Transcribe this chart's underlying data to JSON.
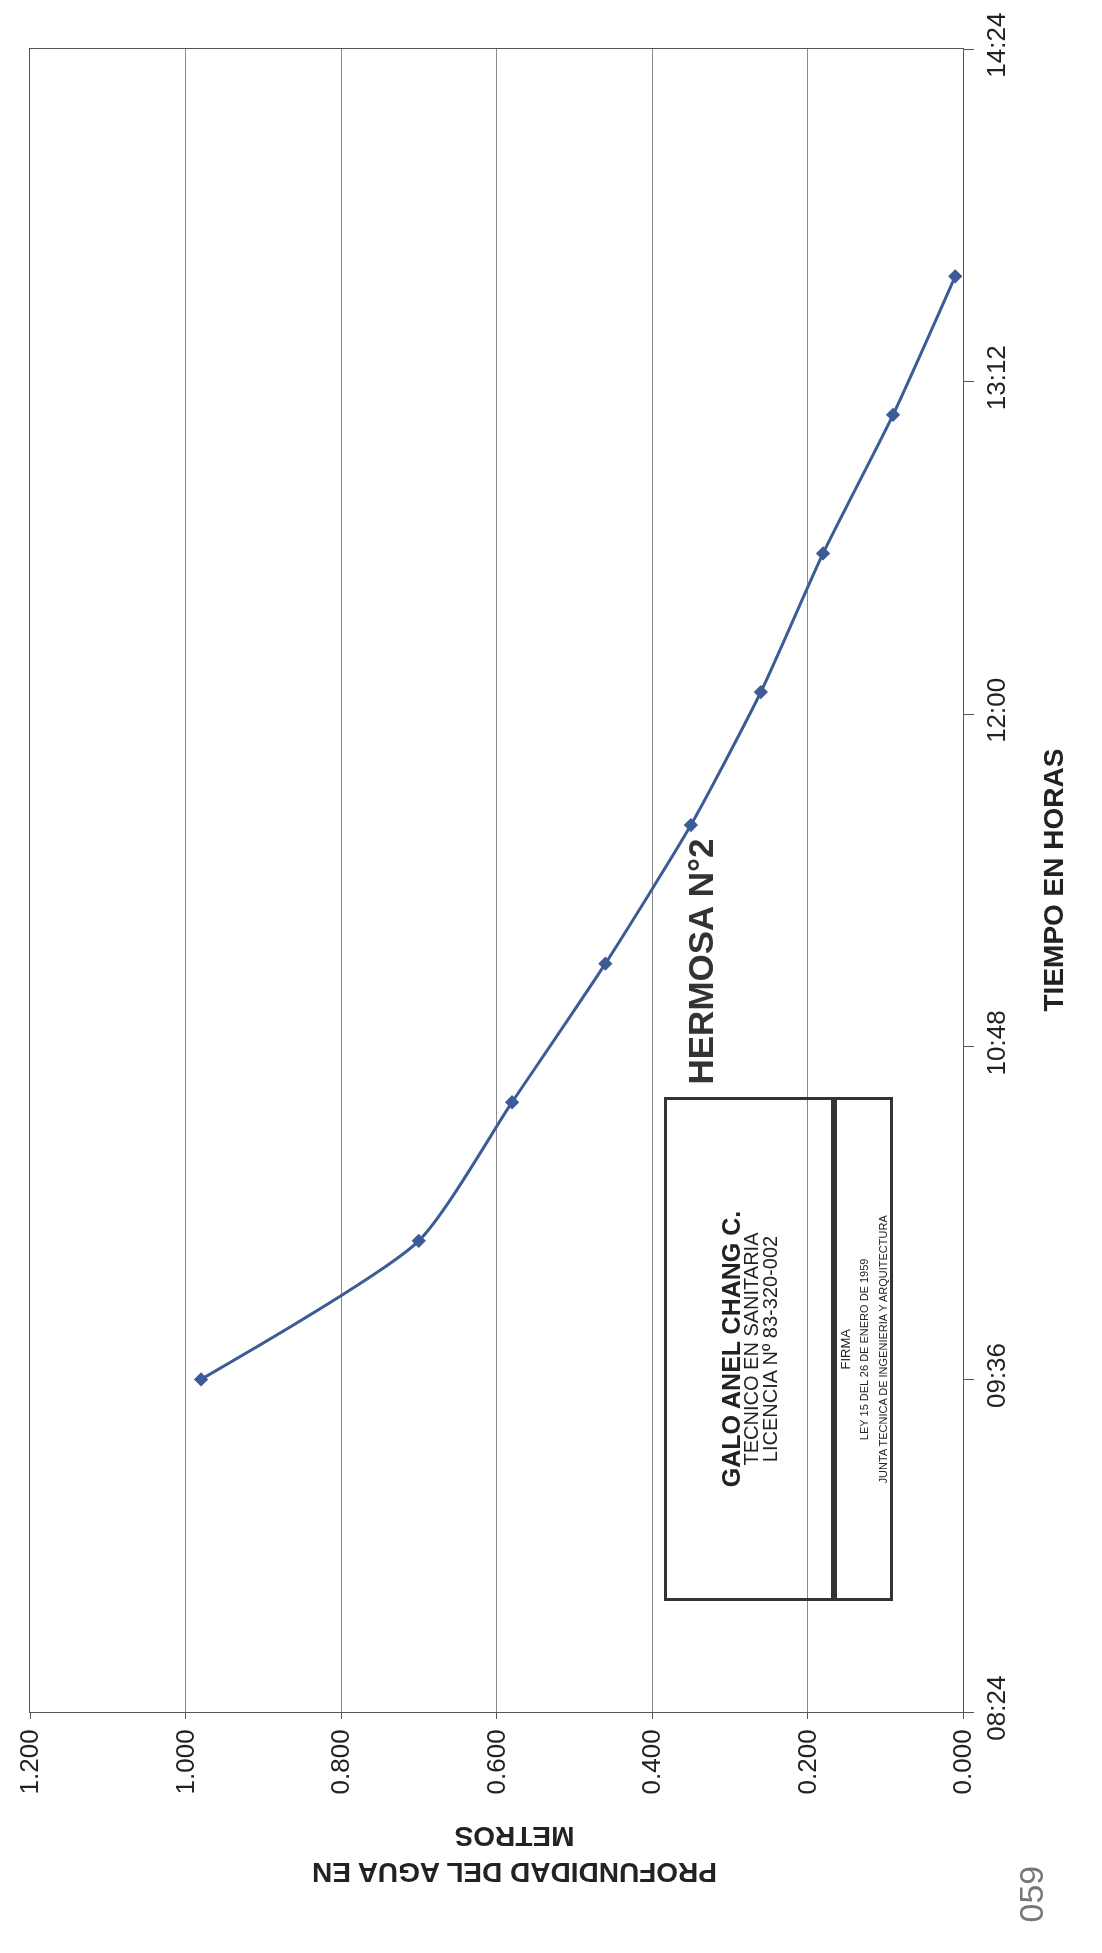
{
  "chart_data": {
    "type": "line",
    "title": "HERMOSA N°2",
    "xlabel": "PROFUNDIDAD DEL AGUA EN METROS",
    "ylabel": "TIEMPO EN HORAS",
    "x": [
      0.98,
      0.7,
      0.58,
      0.46,
      0.35,
      0.26,
      0.18,
      0.09,
      0.01
    ],
    "series": [
      {
        "color": "#3b5c97",
        "values": [
          9.6,
          10.1,
          10.6,
          11.1,
          11.6,
          12.08,
          12.58,
          13.08,
          13.58
        ]
      }
    ],
    "xlim": [
      1.2,
      0
    ],
    "xticks": [
      {
        "value": 1.2,
        "label": "1.200"
      },
      {
        "value": 1,
        "label": "1.000"
      },
      {
        "value": 0.8,
        "label": "0.800"
      },
      {
        "value": 0.6,
        "label": "0.600"
      },
      {
        "value": 0.4,
        "label": "0.400"
      },
      {
        "value": 0.2,
        "label": "0.200"
      },
      {
        "value": 0,
        "label": "0.000"
      }
    ],
    "ylim": [
      8.4,
      14.4
    ],
    "yticks": [
      {
        "value": 8.4,
        "label": "08:24"
      },
      {
        "value": 9.6,
        "label": "09:36"
      },
      {
        "value": 10.8,
        "label": "10:48"
      },
      {
        "value": 12,
        "label": "12:00"
      },
      {
        "value": 13.2,
        "label": "13:12"
      },
      {
        "value": 14.4,
        "label": "14:24"
      }
    ],
    "grid": "x",
    "marker": "diamond",
    "line_style": "solid",
    "annotations": [
      "GALO ANEL CHANG C.",
      "TECNICO EN SANITARIA",
      "LICENCIA Nº 83-320-002",
      "FIRMA",
      "LEY 15 DEL 26 DE ENERO DE 1959",
      "JUNTA TECNICA DE INGENIERIA Y ARQUITECTURA",
      "059"
    ]
  }
}
